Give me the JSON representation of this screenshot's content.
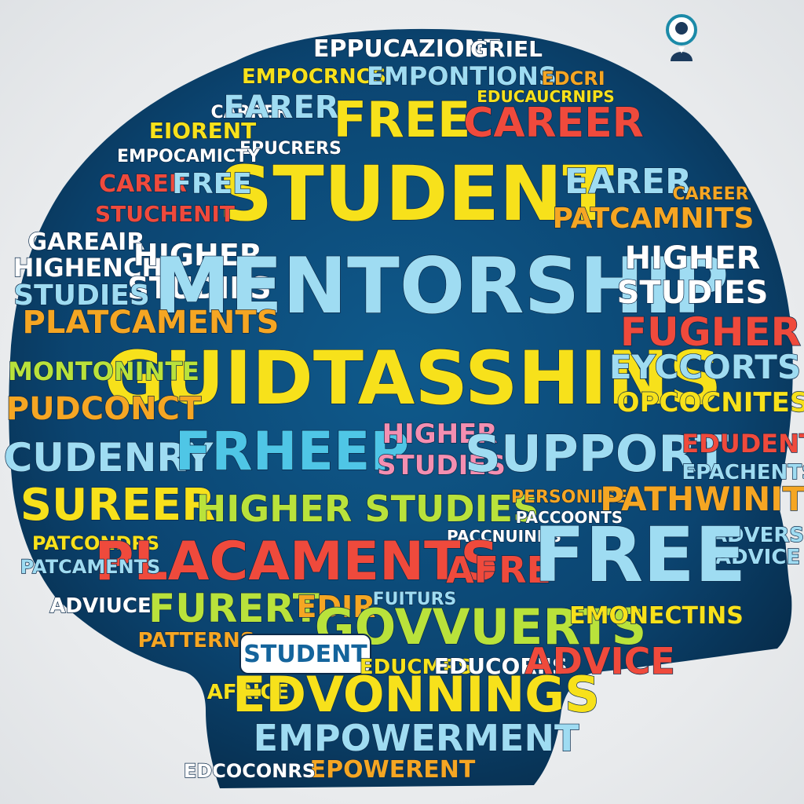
{
  "colors": {
    "background": "#e9ebed",
    "head_fill": "#0d4a78",
    "head_deep": "#093556",
    "yellow": "#f7e11b",
    "lime": "#b9e23b",
    "green": "#7fd64a",
    "light_blue": "#9fdcf2",
    "cyan": "#4fc6e6",
    "orange": "#f5a623",
    "red": "#ef4a3c",
    "pink": "#f48fb1",
    "white": "#ffffff",
    "badge_bg": "#ffffff",
    "badge_text": "#14649c"
  },
  "logo": {
    "icon": "person-user-icon"
  },
  "words": [
    {
      "text": "EPPUCAZIONT",
      "color": "white"
    },
    {
      "text": "GRIEL",
      "color": "white"
    },
    {
      "text": "EMPOCRNCS",
      "color": "yellow"
    },
    {
      "text": "EMPONTIONS",
      "color": "light_blue"
    },
    {
      "text": "EDCRI",
      "color": "orange"
    },
    {
      "text": "EDUCAUCRNIPS",
      "color": "yellow"
    },
    {
      "text": "CARRER",
      "color": "white"
    },
    {
      "text": "EARER",
      "color": "light_blue"
    },
    {
      "text": "FREE",
      "color": "yellow"
    },
    {
      "text": "CAREER",
      "color": "red"
    },
    {
      "text": "STUDENT",
      "color": "yellow"
    },
    {
      "text": "EIORENT",
      "color": "yellow"
    },
    {
      "text": "EPUCRERS",
      "color": "white"
    },
    {
      "text": "EMPOCAMICTY",
      "color": "white"
    },
    {
      "text": "CARER",
      "color": "red"
    },
    {
      "text": "FREE",
      "color": "light_blue"
    },
    {
      "text": "EARER",
      "color": "light_blue"
    },
    {
      "text": "CAREER",
      "color": "orange"
    },
    {
      "text": "STUCHENIT",
      "color": "red"
    },
    {
      "text": "PATCAMNITS",
      "color": "orange"
    },
    {
      "text": "GAREAIR",
      "color": "white"
    },
    {
      "text": "HIGHENCH",
      "color": "white"
    },
    {
      "text": "HIGHER",
      "color": "white"
    },
    {
      "text": "STUDIES",
      "color": "white"
    },
    {
      "text": "MENTORSHIP",
      "color": "light_blue"
    },
    {
      "text": "HIGHER",
      "color": "white"
    },
    {
      "text": "STUDIES",
      "color": "white"
    },
    {
      "text": "STUDIES",
      "color": "light_blue"
    },
    {
      "text": "PLATCAMENTS",
      "color": "orange"
    },
    {
      "text": "GUIDTASSHINS",
      "color": "yellow"
    },
    {
      "text": "FUGHER",
      "color": "red"
    },
    {
      "text": "MONTONINTE",
      "color": "lime"
    },
    {
      "text": "EYCCORTS",
      "color": "light_blue"
    },
    {
      "text": "PUDCONCT",
      "color": "orange"
    },
    {
      "text": "OPCOCNITES",
      "color": "yellow"
    },
    {
      "text": "CUDENRY",
      "color": "light_blue"
    },
    {
      "text": "FRHEEP",
      "color": "cyan"
    },
    {
      "text": "HIGHER",
      "color": "pink"
    },
    {
      "text": "STUDIES",
      "color": "pink"
    },
    {
      "text": "SUPPORT",
      "color": "light_blue"
    },
    {
      "text": "EDUDENT",
      "color": "red"
    },
    {
      "text": "EPACHENTS",
      "color": "light_blue"
    },
    {
      "text": "SUREER",
      "color": "yellow"
    },
    {
      "text": "HIGHER STUDIES",
      "color": "lime"
    },
    {
      "text": "PERSONIISE",
      "color": "orange"
    },
    {
      "text": "PACCOONTS",
      "color": "white"
    },
    {
      "text": "PATHWINITS",
      "color": "orange"
    },
    {
      "text": "PATCONDRS",
      "color": "yellow"
    },
    {
      "text": "PACCNUINNS",
      "color": "white"
    },
    {
      "text": "ADVERS",
      "color": "light_blue"
    },
    {
      "text": "ADVICE",
      "color": "light_blue"
    },
    {
      "text": "PLACAMENTS",
      "color": "red"
    },
    {
      "text": "AFRE",
      "color": "red"
    },
    {
      "text": "FREE",
      "color": "light_blue"
    },
    {
      "text": "PATCAMENTS",
      "color": "light_blue"
    },
    {
      "text": "ADVIUCE",
      "color": "white"
    },
    {
      "text": "FURERT",
      "color": "lime"
    },
    {
      "text": "EDIR",
      "color": "orange"
    },
    {
      "text": "FUITURS",
      "color": "light_blue"
    },
    {
      "text": "GOVVUERTS",
      "color": "lime"
    },
    {
      "text": "EMONECTINS",
      "color": "yellow"
    },
    {
      "text": "PATTERNS",
      "color": "orange"
    },
    {
      "text": "STUDENT",
      "color": "badge_text"
    },
    {
      "text": "EDUCMRS",
      "color": "yellow"
    },
    {
      "text": "EDUCORI'S",
      "color": "white"
    },
    {
      "text": "ADVICE",
      "color": "red"
    },
    {
      "text": "AFRICE",
      "color": "yellow"
    },
    {
      "text": "EDVONNINGS",
      "color": "yellow"
    },
    {
      "text": "EMPOWERMENT",
      "color": "light_blue"
    },
    {
      "text": "EPOWERENT",
      "color": "orange"
    },
    {
      "text": "EDCOCONRS",
      "color": "white"
    }
  ]
}
